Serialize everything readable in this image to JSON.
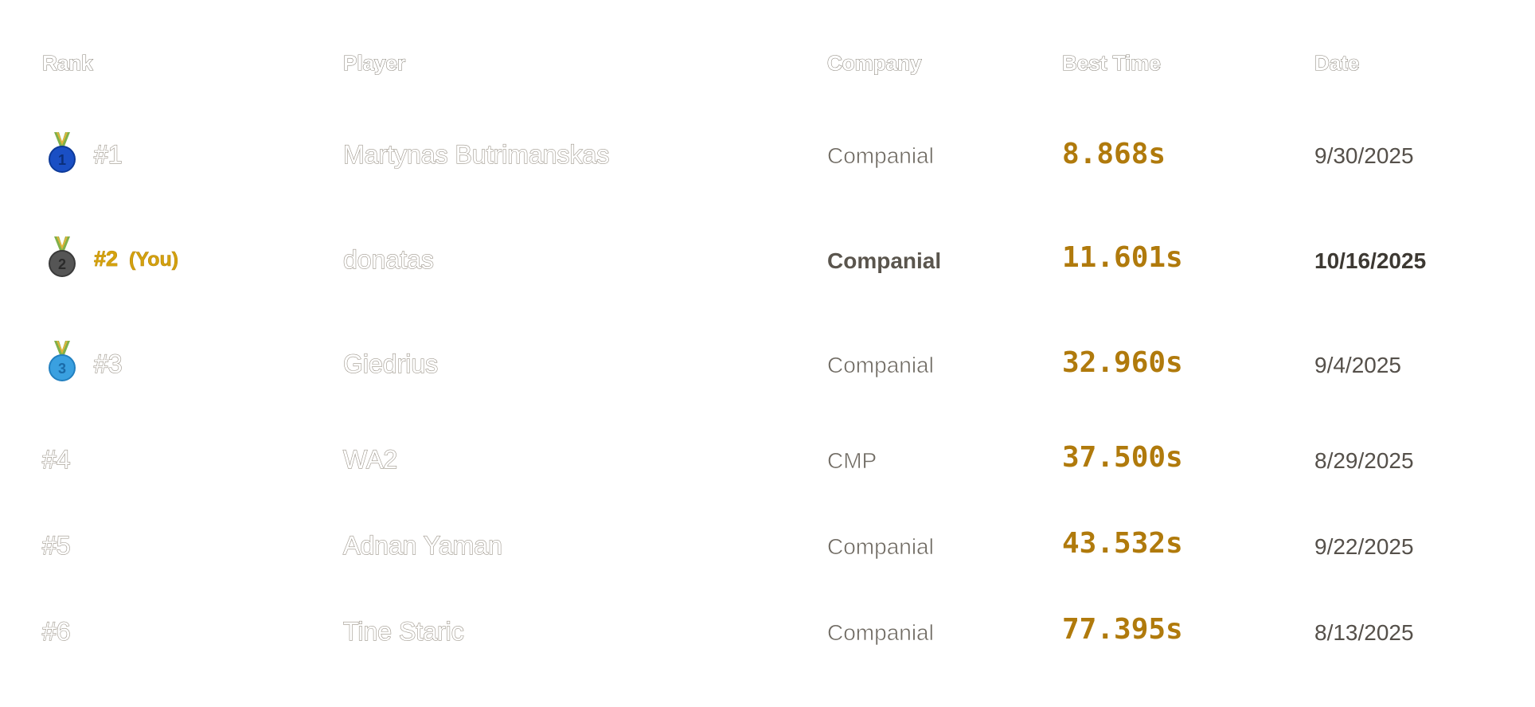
{
  "headers": {
    "rank": "Rank",
    "player": "Player",
    "company": "Company",
    "best_time": "Best Time",
    "date": "Date"
  },
  "rows": [
    {
      "rank": "#1",
      "medal": "gold-medal-icon",
      "player": "Martynas Butrimanskas",
      "company": "Companial",
      "best_time": "8.868s",
      "date": "9/30/2025",
      "is_you": false,
      "you_label": ""
    },
    {
      "rank": "#2",
      "medal": "silver-medal-icon",
      "player": "donatas",
      "company": "Companial",
      "best_time": "11.601s",
      "date": "10/16/2025",
      "is_you": true,
      "you_label": "(You)"
    },
    {
      "rank": "#3",
      "medal": "bronze-medal-icon",
      "player": "Giedrius",
      "company": "Companial",
      "best_time": "32.960s",
      "date": "9/4/2025",
      "is_you": false,
      "you_label": ""
    },
    {
      "rank": "#4",
      "medal": "",
      "player": "WA2",
      "company": "CMP",
      "best_time": "37.500s",
      "date": "8/29/2025",
      "is_you": false,
      "you_label": ""
    },
    {
      "rank": "#5",
      "medal": "",
      "player": "Adnan Yaman",
      "company": "Companial",
      "best_time": "43.532s",
      "date": "9/22/2025",
      "is_you": false,
      "you_label": ""
    },
    {
      "rank": "#6",
      "medal": "",
      "player": "Tine Staric",
      "company": "Companial",
      "best_time": "77.395s",
      "date": "8/13/2025",
      "is_you": false,
      "you_label": ""
    }
  ],
  "colors": {
    "accent_time": "#b07a0c",
    "you_highlight": "#d4a20e",
    "medal_1": "#1a4fc4",
    "medal_2": "#555555",
    "medal_3": "#3aa0e0",
    "ribbon": "#7fb04a"
  }
}
